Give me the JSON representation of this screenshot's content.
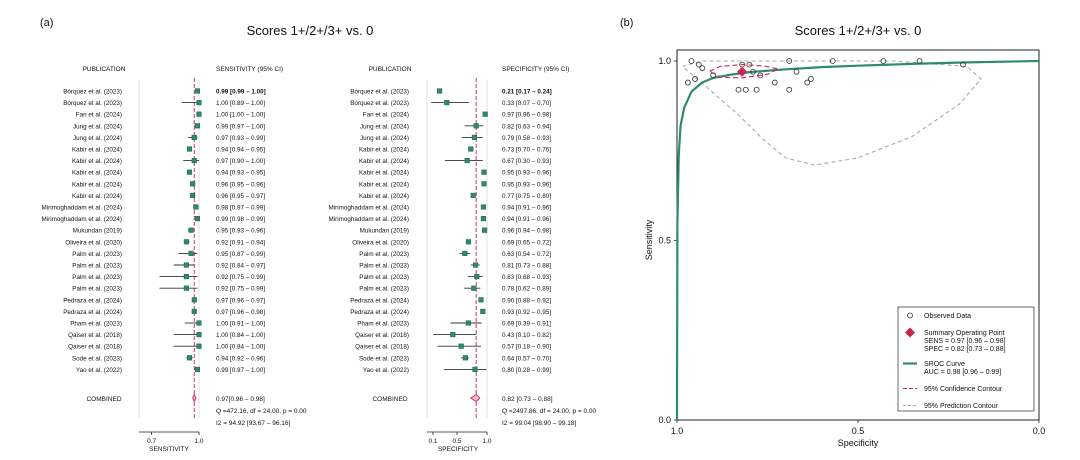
{
  "panel_a": {
    "label": "(a)",
    "title": "Scores 1+/2+/3+ vs. 0",
    "publication_header": "PUBLICATION",
    "sens_header": "SENSITIVITY (95% CI)",
    "spec_header": "SPECIFICITY (95% CI)",
    "sens_axis_label": "SENSITIVITY",
    "spec_axis_label": "SPECIFICITY",
    "combined_label": "COMBINED"
  },
  "panel_b": {
    "label": "(b)",
    "title": "Scores 1+/2+/3+ vs. 0",
    "xlabel": "Specificity",
    "ylabel": "Sensitivity"
  },
  "chart_data": [
    {
      "type": "forest",
      "title": "Scores 1+/2+/3+ vs. 0",
      "publications": [
        "Bórquez et al. (2023)",
        "Bórquez et al. (2023)",
        "Fan et al. (2024)",
        "Jung et al. (2024)",
        "Jung et al. (2024)",
        "Kabir et al. (2024)",
        "Kabir et al. (2024)",
        "Kabir et al. (2024)",
        "Kabir et al. (2024)",
        "Kabir et al. (2024)",
        "Mirimoghaddam et al. (2024)",
        "Mirimoghaddam et al. (2024)",
        "Mukundan (2019)",
        "Oliveira et al. (2020)",
        "Palm et al. (2023)",
        "Palm et al. (2023)",
        "Palm et al. (2023)",
        "Palm et al. (2023)",
        "Pedraza et al. (2024)",
        "Pedraza et al. (2024)",
        "Pham et al. (2023)",
        "Qaiser et al. (2018)",
        "Qaiser et al. (2018)",
        "Sode et al. (2023)",
        "Yao et al. (2022)"
      ],
      "sensitivity": {
        "values": [
          {
            "est": 0.99,
            "lo": 0.99,
            "hi": 1.0,
            "label": "0.99 [0.99 – 1.00]"
          },
          {
            "est": 1.0,
            "lo": 0.89,
            "hi": 1.0,
            "label": "1.00 [0.89 – 1.00]"
          },
          {
            "est": 1.0,
            "lo": 1.0,
            "hi": 1.0,
            "label": "1.00 [1.00 – 1.00]"
          },
          {
            "est": 0.99,
            "lo": 0.97,
            "hi": 1.0,
            "label": "0.99 [0.97 – 1.00]"
          },
          {
            "est": 0.97,
            "lo": 0.93,
            "hi": 0.99,
            "label": "0.97 [0.93 – 0.99]"
          },
          {
            "est": 0.94,
            "lo": 0.94,
            "hi": 0.95,
            "label": "0.94 [0.94 – 0.95]"
          },
          {
            "est": 0.97,
            "lo": 0.9,
            "hi": 1.0,
            "label": "0.97 [0.90 – 1.00]"
          },
          {
            "est": 0.94,
            "lo": 0.93,
            "hi": 0.95,
            "label": "0.94 [0.93 – 0.95]"
          },
          {
            "est": 0.96,
            "lo": 0.95,
            "hi": 0.96,
            "label": "0.96 [0.95 – 0.96]"
          },
          {
            "est": 0.96,
            "lo": 0.95,
            "hi": 0.97,
            "label": "0.96 [0.95 – 0.97]"
          },
          {
            "est": 0.98,
            "lo": 0.97,
            "hi": 0.99,
            "label": "0.98 [0.97 – 0.99]"
          },
          {
            "est": 0.99,
            "lo": 0.98,
            "hi": 0.99,
            "label": "0.99 [0.98 – 0.99]"
          },
          {
            "est": 0.95,
            "lo": 0.93,
            "hi": 0.96,
            "label": "0.95 [0.93 – 0.96]"
          },
          {
            "est": 0.92,
            "lo": 0.91,
            "hi": 0.94,
            "label": "0.92 [0.91 – 0.94]"
          },
          {
            "est": 0.95,
            "lo": 0.87,
            "hi": 0.99,
            "label": "0.95 [0.87 – 0.99]"
          },
          {
            "est": 0.92,
            "lo": 0.84,
            "hi": 0.97,
            "label": "0.92 [0.84 – 0.97]"
          },
          {
            "est": 0.92,
            "lo": 0.75,
            "hi": 0.99,
            "label": "0.92 [0.75 – 0.99]"
          },
          {
            "est": 0.92,
            "lo": 0.75,
            "hi": 0.99,
            "label": "0.92 [0.75 – 0.99]"
          },
          {
            "est": 0.97,
            "lo": 0.96,
            "hi": 0.97,
            "label": "0.97 [0.96 – 0.97]"
          },
          {
            "est": 0.97,
            "lo": 0.96,
            "hi": 0.98,
            "label": "0.97 [0.96 – 0.98]"
          },
          {
            "est": 1.0,
            "lo": 0.91,
            "hi": 1.0,
            "label": "1.00 [0.91 – 1.00]"
          },
          {
            "est": 1.0,
            "lo": 0.84,
            "hi": 1.0,
            "label": "1.00 [0.84 – 1.00]"
          },
          {
            "est": 1.0,
            "lo": 0.84,
            "hi": 1.0,
            "label": "1.00 [0.84 – 1.00]"
          },
          {
            "est": 0.94,
            "lo": 0.92,
            "hi": 0.96,
            "label": "0.94 [0.92 – 0.96]"
          },
          {
            "est": 0.99,
            "lo": 0.97,
            "hi": 1.0,
            "label": "0.99 [0.97 – 1.00]"
          }
        ],
        "combined": {
          "est": 0.97,
          "lo": 0.96,
          "hi": 0.98,
          "label": "0.97[0.96 – 0.98]"
        },
        "q_stat": "Q =472.16, df = 24.00, p =  0.00",
        "i2": "I2 = 94.92 [93.67 – 96.16]",
        "axis_ticks": [
          0.7,
          1.0
        ],
        "axis_tick_labels": [
          "0.7",
          "1.0"
        ],
        "xlim": [
          0.62,
          1.0
        ]
      },
      "specificity": {
        "values": [
          {
            "est": 0.21,
            "lo": 0.17,
            "hi": 0.24,
            "label": "0.21 [0.17 – 0.24]"
          },
          {
            "est": 0.33,
            "lo": 0.07,
            "hi": 0.7,
            "label": "0.33 [0.07 – 0.70]"
          },
          {
            "est": 0.97,
            "lo": 0.96,
            "hi": 0.98,
            "label": "0.97 [0.96 – 0.98]"
          },
          {
            "est": 0.82,
            "lo": 0.63,
            "hi": 0.94,
            "label": "0.82 [0.63 – 0.94]"
          },
          {
            "est": 0.79,
            "lo": 0.58,
            "hi": 0.93,
            "label": "0.79 [0.58 – 0.93]"
          },
          {
            "est": 0.73,
            "lo": 0.7,
            "hi": 0.76,
            "label": "0.73 [0.70 – 0.76]"
          },
          {
            "est": 0.67,
            "lo": 0.3,
            "hi": 0.93,
            "label": "0.67 [0.30 – 0.93]"
          },
          {
            "est": 0.95,
            "lo": 0.93,
            "hi": 0.96,
            "label": "0.95 [0.93 – 0.96]"
          },
          {
            "est": 0.95,
            "lo": 0.93,
            "hi": 0.96,
            "label": "0.95 [0.93 – 0.96]"
          },
          {
            "est": 0.77,
            "lo": 0.75,
            "hi": 0.8,
            "label": "0.77 [0.75 – 0.80]"
          },
          {
            "est": 0.94,
            "lo": 0.91,
            "hi": 0.96,
            "label": "0.94 [0.91 – 0.96]"
          },
          {
            "est": 0.94,
            "lo": 0.91,
            "hi": 0.96,
            "label": "0.94 [0.91 – 0.96]"
          },
          {
            "est": 0.96,
            "lo": 0.94,
            "hi": 0.98,
            "label": "0.96 [0.94 – 0.98]"
          },
          {
            "est": 0.69,
            "lo": 0.65,
            "hi": 0.72,
            "label": "0.69 [0.65 – 0.72]"
          },
          {
            "est": 0.63,
            "lo": 0.54,
            "hi": 0.72,
            "label": "0.63 [0.54 – 0.72]"
          },
          {
            "est": 0.81,
            "lo": 0.73,
            "hi": 0.88,
            "label": "0.81 [0.73 – 0.88]"
          },
          {
            "est": 0.83,
            "lo": 0.68,
            "hi": 0.93,
            "label": "0.83 [0.68 – 0.93]"
          },
          {
            "est": 0.78,
            "lo": 0.62,
            "hi": 0.89,
            "label": "0.78 [0.62 – 0.89]"
          },
          {
            "est": 0.9,
            "lo": 0.88,
            "hi": 0.92,
            "label": "0.90 [0.88 – 0.92]"
          },
          {
            "est": 0.93,
            "lo": 0.92,
            "hi": 0.95,
            "label": "0.93 [0.92 – 0.95]"
          },
          {
            "est": 0.69,
            "lo": 0.39,
            "hi": 0.91,
            "label": "0.69 [0.39 – 0.91]"
          },
          {
            "est": 0.43,
            "lo": 0.1,
            "hi": 0.82,
            "label": "0.43 [0.10 – 0.82]"
          },
          {
            "est": 0.57,
            "lo": 0.18,
            "hi": 0.9,
            "label": "0.57 [0.18 – 0.90]"
          },
          {
            "est": 0.64,
            "lo": 0.57,
            "hi": 0.7,
            "label": "0.64 [0.57 – 0.70]"
          },
          {
            "est": 0.8,
            "lo": 0.28,
            "hi": 0.99,
            "label": "0.80 [0.28 – 0.99]"
          }
        ],
        "combined": {
          "est": 0.82,
          "lo": 0.73,
          "hi": 0.88,
          "label": "0.82 [0.73 – 0.88]"
        },
        "q_stat": "Q =2497.86, df = 24.00, p =  0.00",
        "i2": "I2 = 99.04 [98.90 – 99.18]",
        "axis_ticks": [
          0.1,
          0.5,
          1.0
        ],
        "axis_tick_labels": [
          "0.1",
          "0.5",
          "1.0"
        ],
        "xlim": [
          0.0,
          1.0
        ]
      },
      "colors": {
        "marker": "#2e8b6e",
        "reference": "#d0365a",
        "ci": "#333333"
      }
    },
    {
      "type": "sroc",
      "title": "Scores 1+/2+/3+ vs. 0",
      "xlabel": "Specificity",
      "ylabel": "Sensitivity",
      "x_reversed": true,
      "xlim": [
        1.0,
        0.0
      ],
      "ylim": [
        0.0,
        1.0
      ],
      "x_ticks": [
        1.0,
        0.5,
        0.0
      ],
      "x_tick_labels": [
        "1.0",
        "0.5",
        "0.0"
      ],
      "y_ticks": [
        0.0,
        0.5,
        1.0
      ],
      "y_tick_labels": [
        "0.0",
        "0.5",
        "1.0"
      ],
      "observed_points": [
        {
          "spec": 0.97,
          "sens": 0.94
        },
        {
          "spec": 0.95,
          "sens": 0.95
        },
        {
          "spec": 0.94,
          "sens": 0.99
        },
        {
          "spec": 0.93,
          "sens": 0.98
        },
        {
          "spec": 0.96,
          "sens": 1.0
        },
        {
          "spec": 0.9,
          "sens": 0.96
        },
        {
          "spec": 0.83,
          "sens": 0.92
        },
        {
          "spec": 0.82,
          "sens": 0.99
        },
        {
          "spec": 0.81,
          "sens": 0.92
        },
        {
          "spec": 0.8,
          "sens": 0.99
        },
        {
          "spec": 0.79,
          "sens": 0.97
        },
        {
          "spec": 0.78,
          "sens": 0.92
        },
        {
          "spec": 0.77,
          "sens": 0.96
        },
        {
          "spec": 0.73,
          "sens": 0.94
        },
        {
          "spec": 0.69,
          "sens": 1.0
        },
        {
          "spec": 0.69,
          "sens": 0.92
        },
        {
          "spec": 0.67,
          "sens": 0.97
        },
        {
          "spec": 0.64,
          "sens": 0.94
        },
        {
          "spec": 0.63,
          "sens": 0.95
        },
        {
          "spec": 0.57,
          "sens": 1.0
        },
        {
          "spec": 0.43,
          "sens": 1.0
        },
        {
          "spec": 0.33,
          "sens": 1.0
        },
        {
          "spec": 0.21,
          "sens": 0.99
        }
      ],
      "summary_point": {
        "spec": 0.82,
        "sens": 0.97
      },
      "sroc_curve": [
        {
          "spec": 1.0,
          "sens": 0.0
        },
        {
          "spec": 0.999,
          "sens": 0.55
        },
        {
          "spec": 0.995,
          "sens": 0.74
        },
        {
          "spec": 0.99,
          "sens": 0.82
        },
        {
          "spec": 0.98,
          "sens": 0.87
        },
        {
          "spec": 0.96,
          "sens": 0.915
        },
        {
          "spec": 0.93,
          "sens": 0.94
        },
        {
          "spec": 0.9,
          "sens": 0.953
        },
        {
          "spec": 0.85,
          "sens": 0.962
        },
        {
          "spec": 0.8,
          "sens": 0.969
        },
        {
          "spec": 0.7,
          "sens": 0.977
        },
        {
          "spec": 0.6,
          "sens": 0.983
        },
        {
          "spec": 0.5,
          "sens": 0.987
        },
        {
          "spec": 0.35,
          "sens": 0.992
        },
        {
          "spec": 0.2,
          "sens": 0.996
        },
        {
          "spec": 0.0,
          "sens": 1.0
        }
      ],
      "confidence_contour": [
        {
          "spec": 0.91,
          "sens": 0.972
        },
        {
          "spec": 0.88,
          "sens": 0.985
        },
        {
          "spec": 0.82,
          "sens": 0.99
        },
        {
          "spec": 0.76,
          "sens": 0.986
        },
        {
          "spec": 0.72,
          "sens": 0.978
        },
        {
          "spec": 0.75,
          "sens": 0.963
        },
        {
          "spec": 0.82,
          "sens": 0.953
        },
        {
          "spec": 0.88,
          "sens": 0.955
        },
        {
          "spec": 0.91,
          "sens": 0.972
        }
      ],
      "prediction_contour": [
        {
          "spec": 0.985,
          "sens": 0.985
        },
        {
          "spec": 0.93,
          "sens": 1.0
        },
        {
          "spec": 0.7,
          "sens": 1.0
        },
        {
          "spec": 0.4,
          "sens": 1.0
        },
        {
          "spec": 0.2,
          "sens": 0.985
        },
        {
          "spec": 0.16,
          "sens": 0.95
        },
        {
          "spec": 0.22,
          "sens": 0.88
        },
        {
          "spec": 0.35,
          "sens": 0.79
        },
        {
          "spec": 0.5,
          "sens": 0.73
        },
        {
          "spec": 0.62,
          "sens": 0.71
        },
        {
          "spec": 0.7,
          "sens": 0.73
        },
        {
          "spec": 0.76,
          "sens": 0.78
        },
        {
          "spec": 0.83,
          "sens": 0.85
        },
        {
          "spec": 0.91,
          "sens": 0.92
        },
        {
          "spec": 0.985,
          "sens": 0.985
        }
      ],
      "legend": [
        {
          "key": "observed",
          "text": "Observed Data"
        },
        {
          "key": "summary",
          "text": "Summary Operating Point",
          "sub": [
            "SENS = 0.97 [0.96 – 0.98]",
            "SPEC = 0.82 [0.73 – 0.88]"
          ]
        },
        {
          "key": "sroc",
          "text": "SROC Curve",
          "sub": [
            "AUC = 0.98 [0.96 – 0.99]"
          ]
        },
        {
          "key": "confidence",
          "text": "95% Confidence Contour"
        },
        {
          "key": "prediction",
          "text": "95% Prediction Contour"
        }
      ],
      "legend_position": "bottom-right",
      "colors": {
        "sroc": "#2e8b6e",
        "summary": "#c8284f",
        "confidence": "#c8284f",
        "prediction": "#aaaaaa",
        "observed": "#333333"
      }
    }
  ]
}
